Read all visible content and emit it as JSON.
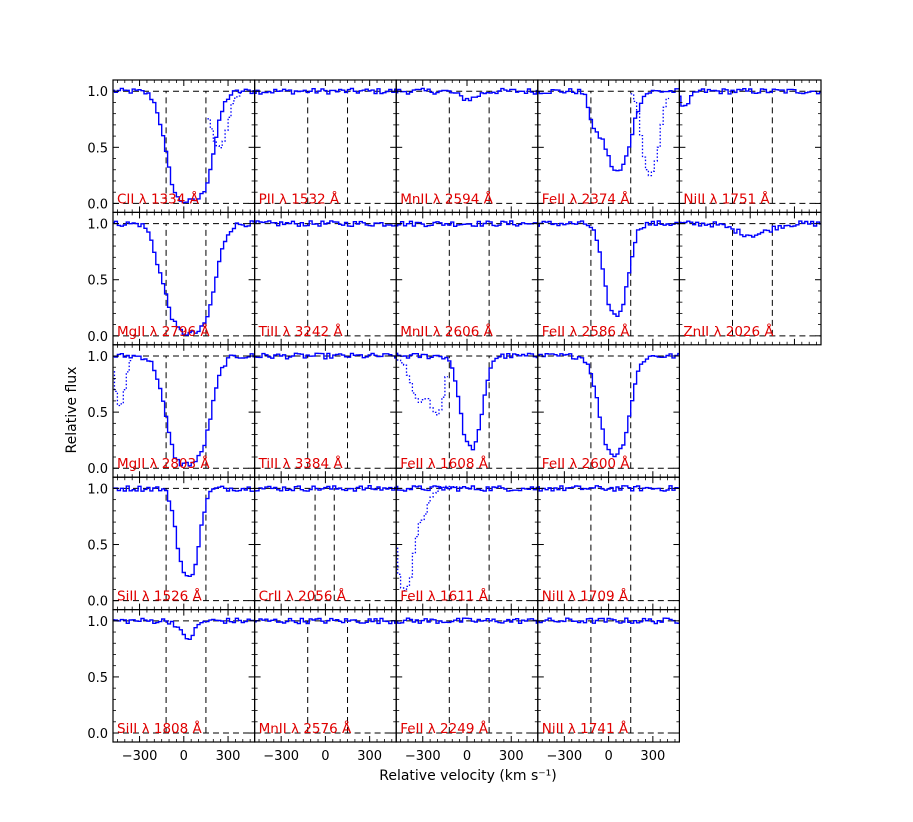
{
  "chart_data": {
    "type": "line",
    "title": "",
    "xlabel": "Relative velocity (km s⁻¹)",
    "ylabel": "Relative flux",
    "xlim": [
      -480,
      480
    ],
    "ylim": [
      -0.08,
      1.1
    ],
    "xticks": [
      -300,
      0,
      300
    ],
    "yticks": [
      0.0,
      0.5,
      1.0
    ],
    "ytick_labels": [
      "0.0",
      "0.5",
      "1.0"
    ],
    "layout": "5 columns x 5 rows, shared axes",
    "spectrum_color": "#0000ff",
    "contaminated_color": "#7777ff",
    "label_color": "#e00000",
    "panels": [
      {
        "col": 0,
        "row": 0,
        "label": "CII λ 1334 Å",
        "vmarks": [
          -120,
          150
        ],
        "features": [
          {
            "c": 40,
            "w": 90,
            "d": 0.98,
            "s": 0
          },
          {
            "c": -20,
            "w": 30,
            "d": 0.4,
            "s": 0
          }
        ],
        "dotted": [
          {
            "from": 170,
            "to": 390,
            "features": [
              {
                "c": 240,
                "w": 50,
                "d": 0.5
              }
            ]
          }
        ]
      },
      {
        "col": 1,
        "row": 0,
        "label": "PII λ 1532 Å",
        "vmarks": [
          -120,
          150
        ],
        "features": [],
        "dotted": []
      },
      {
        "col": 2,
        "row": 0,
        "label": "MnII λ 2594 Å",
        "vmarks": [
          -120,
          150
        ],
        "features": [
          {
            "c": 10,
            "w": 60,
            "d": 0.07,
            "s": 0
          }
        ],
        "dotted": []
      },
      {
        "col": 3,
        "row": 0,
        "label": "FeII λ 2374 Å",
        "vmarks": [
          -120,
          150
        ],
        "features": [
          {
            "c": 60,
            "w": 70,
            "d": 0.72,
            "s": 0
          },
          {
            "c": -90,
            "w": 35,
            "d": 0.28,
            "s": 0
          }
        ],
        "dotted": [
          {
            "from": 160,
            "to": 400,
            "features": [
              {
                "c": 285,
                "w": 45,
                "d": 0.75
              }
            ]
          }
        ]
      },
      {
        "col": 4,
        "row": 0,
        "label": "NiII λ 1751 Å",
        "vmarks": [
          -120,
          150
        ],
        "features": [
          {
            "c": -440,
            "w": 30,
            "d": 0.15,
            "s": 0
          }
        ],
        "dotted": []
      },
      {
        "col": 0,
        "row": 1,
        "label": "MgII λ 2796 Å",
        "vmarks": [
          -120,
          150
        ],
        "features": [
          {
            "c": 40,
            "w": 95,
            "d": 0.98,
            "s": 0
          },
          {
            "c": -170,
            "w": 40,
            "d": 0.15,
            "s": 0
          }
        ],
        "dotted": []
      },
      {
        "col": 1,
        "row": 1,
        "label": "TiII λ 3242 Å",
        "vmarks": [
          -120,
          150
        ],
        "features": [],
        "dotted": []
      },
      {
        "col": 2,
        "row": 1,
        "label": "MnII λ 2606 Å",
        "vmarks": [
          -120,
          150
        ],
        "features": [],
        "dotted": []
      },
      {
        "col": 3,
        "row": 1,
        "label": "FeII λ 2586 Å",
        "vmarks": [
          -120,
          150
        ],
        "features": [
          {
            "c": 50,
            "w": 60,
            "d": 0.82,
            "s": 0
          }
        ],
        "dotted": []
      },
      {
        "col": 4,
        "row": 1,
        "label": "ZnII λ 2026 Å",
        "vmarks": [
          -120,
          150
        ],
        "features": [
          {
            "c": 10,
            "w": 110,
            "d": 0.1,
            "s": 0
          }
        ],
        "dotted": []
      },
      {
        "col": 0,
        "row": 2,
        "label": "MgII λ 2803 Å",
        "vmarks": [
          -120,
          150
        ],
        "features": [
          {
            "c": 30,
            "w": 90,
            "d": 0.96,
            "s": 0
          },
          {
            "c": -30,
            "w": 30,
            "d": 0.35,
            "s": 0
          }
        ],
        "dotted": [
          {
            "from": -480,
            "to": -360,
            "features": [
              {
                "c": -430,
                "w": 30,
                "d": 0.45
              }
            ]
          }
        ]
      },
      {
        "col": 1,
        "row": 2,
        "label": "TiII λ 3384 Å",
        "vmarks": [
          -120,
          150
        ],
        "features": [],
        "dotted": []
      },
      {
        "col": 2,
        "row": 2,
        "label": "FeII λ 1608 Å",
        "vmarks": [
          -120,
          150
        ],
        "features": [
          {
            "c": 30,
            "w": 55,
            "d": 0.82,
            "s": 0
          }
        ],
        "dotted": [
          {
            "from": -480,
            "to": -130,
            "features": [
              {
                "c": -320,
                "w": 55,
                "d": 0.4
              },
              {
                "c": -200,
                "w": 40,
                "d": 0.5
              }
            ]
          }
        ]
      },
      {
        "col": 3,
        "row": 2,
        "label": "FeII λ 2600 Å",
        "vmarks": [
          -120,
          150
        ],
        "features": [
          {
            "c": 40,
            "w": 70,
            "d": 0.88,
            "s": 0
          }
        ],
        "dotted": []
      },
      {
        "col": 0,
        "row": 3,
        "label": "SiII λ 1526 Å",
        "vmarks": [
          -120,
          150
        ],
        "features": [
          {
            "c": 30,
            "w": 55,
            "d": 0.8,
            "s": 0
          }
        ],
        "dotted": []
      },
      {
        "col": 1,
        "row": 3,
        "label": "CrII λ 2056 Å",
        "vmarks": [
          -70,
          60
        ],
        "features": [],
        "dotted": []
      },
      {
        "col": 2,
        "row": 3,
        "label": "FeII λ 1611 Å",
        "vmarks": [
          -120,
          150
        ],
        "features": [],
        "dotted": [
          {
            "from": -480,
            "to": -40,
            "features": [
              {
                "c": -420,
                "w": 40,
                "d": 0.9
              },
              {
                "c": -310,
                "w": 45,
                "d": 0.25
              }
            ]
          }
        ]
      },
      {
        "col": 3,
        "row": 3,
        "label": "NiII λ 1709 Å",
        "vmarks": [
          -120,
          150
        ],
        "features": [],
        "dotted": []
      },
      {
        "col": 0,
        "row": 4,
        "label": "SiII λ 1808 Å",
        "vmarks": [
          -120,
          150
        ],
        "features": [
          {
            "c": 25,
            "w": 45,
            "d": 0.16,
            "s": 0
          }
        ],
        "dotted": []
      },
      {
        "col": 1,
        "row": 4,
        "label": "MnII λ 2576 Å",
        "vmarks": [
          -120,
          150
        ],
        "features": [],
        "dotted": []
      },
      {
        "col": 2,
        "row": 4,
        "label": "FeII λ 2249 Å",
        "vmarks": [
          -120,
          150
        ],
        "features": [],
        "dotted": []
      },
      {
        "col": 3,
        "row": 4,
        "label": "NiII λ 1741 Å",
        "vmarks": [
          -120,
          150
        ],
        "features": [],
        "dotted": []
      }
    ]
  }
}
